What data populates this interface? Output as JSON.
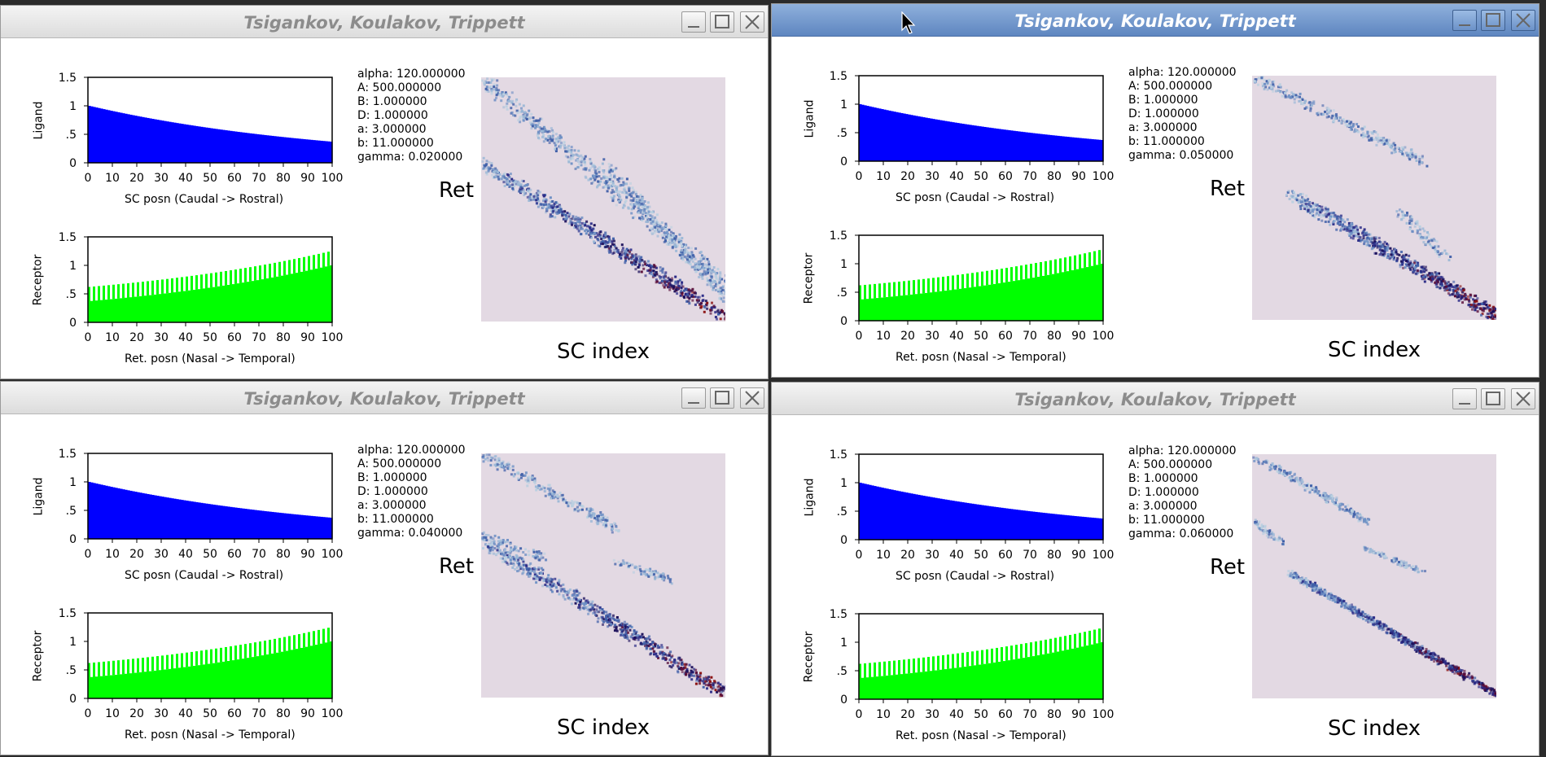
{
  "windows": [
    {
      "title": "Tsigankov, Koulakov, Trippett",
      "active": false,
      "params": [
        "alpha: 120.000000",
        "A: 500.000000",
        "B: 1.000000",
        "D: 1.000000",
        "a: 3.000000",
        "b: 11.000000",
        "gamma: 0.020000"
      ],
      "gamma": 0.02
    },
    {
      "title": "Tsigankov, Koulakov, Trippett",
      "active": true,
      "params": [
        "alpha: 120.000000",
        "A: 500.000000",
        "B: 1.000000",
        "D: 1.000000",
        "a: 3.000000",
        "b: 11.000000",
        "gamma: 0.050000"
      ],
      "gamma": 0.05
    },
    {
      "title": "Tsigankov, Koulakov, Trippett",
      "active": false,
      "params": [
        "alpha: 120.000000",
        "A: 500.000000",
        "B: 1.000000",
        "D: 1.000000",
        "a: 3.000000",
        "b: 11.000000",
        "gamma: 0.040000"
      ],
      "gamma": 0.04
    },
    {
      "title": "Tsigankov, Koulakov, Trippett",
      "active": false,
      "params": [
        "alpha: 120.000000",
        "A: 500.000000",
        "B: 1.000000",
        "D: 1.000000",
        "a: 3.000000",
        "b: 11.000000",
        "gamma: 0.060000"
      ],
      "gamma": 0.06
    }
  ],
  "labels": {
    "ligand_ylabel": "Ligand",
    "ligand_xlabel": "SC posn (Caudal -> Rostral)",
    "receptor_ylabel": "Receptor",
    "receptor_xlabel": "Ret. posn (Nasal -> Temporal)",
    "ret_label": "Ret",
    "sc_label": "SC index"
  },
  "chart_data": [
    {
      "type": "bar",
      "title": "",
      "ylabel": "Ligand",
      "xlabel": "SC posn (Caudal -> Rostral)",
      "xlim": [
        0,
        100
      ],
      "ylim": [
        0,
        1.5
      ],
      "x_ticks": [
        "0",
        "10",
        "20",
        "30",
        "40",
        "50",
        "60",
        "70",
        "80",
        "90",
        "100"
      ],
      "y_ticks": [
        "0",
        ".5",
        "1",
        "1.5"
      ],
      "color": "#0000ff",
      "series": [
        {
          "values_formula": "exp(-0.01*x)",
          "x_range": [
            0,
            99
          ]
        }
      ]
    },
    {
      "type": "bar",
      "title": "",
      "ylabel": "Receptor",
      "xlabel": "Ret. posn (Nasal -> Temporal)",
      "xlim": [
        0,
        100
      ],
      "ylim": [
        0,
        1.5
      ],
      "x_ticks": [
        "0",
        "10",
        "20",
        "30",
        "40",
        "50",
        "60",
        "70",
        "80",
        "90",
        "100"
      ],
      "y_ticks": [
        "0",
        ".5",
        "1",
        "1.5"
      ],
      "color": "#00ff00",
      "series": [
        {
          "values_formula": "exp(0.01*(x-99))",
          "x_range": [
            0,
            99
          ]
        }
      ]
    },
    {
      "type": "heatmap",
      "title": "",
      "xlabel": "SC index",
      "ylabel": "Ret",
      "background": "#e3d9e3"
    }
  ],
  "colors": {
    "ligand": "#0000ff",
    "receptor": "#00ff00",
    "heatmap_bg": "#e3d9e3",
    "active_title": "#5e86c0",
    "inactive_title_text": "#8c8c8c"
  }
}
